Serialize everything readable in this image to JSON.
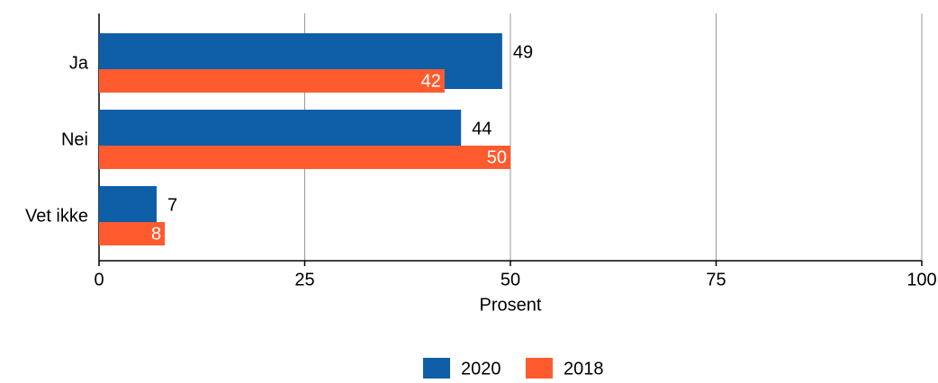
{
  "chart_data": {
    "type": "hbar",
    "categories": [
      "Ja",
      "Nei",
      "Vet ikke"
    ],
    "series": [
      {
        "name": "2020",
        "color": "#0f5ea8",
        "values": [
          49,
          44,
          7
        ]
      },
      {
        "name": "2018",
        "color": "#ff5b2f",
        "values": [
          42,
          50,
          8
        ]
      }
    ],
    "xlim": [
      0,
      100
    ],
    "xticks": [
      0,
      25,
      50,
      75,
      100
    ],
    "xlabel": "Prosent",
    "grid": true,
    "legend": "bottom"
  }
}
